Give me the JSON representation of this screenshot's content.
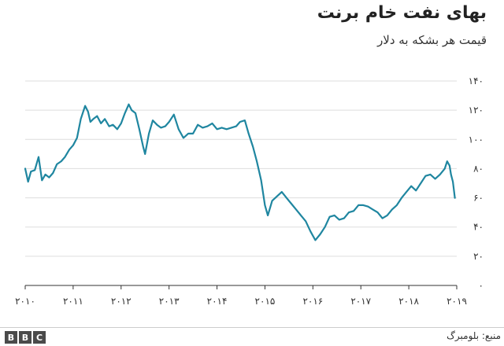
{
  "chart_data": {
    "type": "line",
    "title": "بهای نفت خام برنت",
    "subtitle": "قیمت هر بشکه به دلار",
    "xlabel": "",
    "ylabel": "",
    "ylim": [
      0,
      140
    ],
    "xlim": [
      2010,
      2019
    ],
    "y_ticks": [
      0,
      20,
      40,
      60,
      80,
      100,
      120,
      140
    ],
    "y_tick_labels": [
      "۰",
      "۲۰",
      "۴۰",
      "۶۰",
      "۸۰",
      "۱۰۰",
      "۱۲۰",
      "۱۴۰"
    ],
    "x_ticks": [
      2010,
      2011,
      2012,
      2013,
      2014,
      2015,
      2016,
      2017,
      2018,
      2019
    ],
    "x_tick_labels": [
      "۲۰۱۰",
      "۲۰۱۱",
      "۲۰۱۲",
      "۲۰۱۳",
      "۲۰۱۴",
      "۲۰۱۵",
      "۲۰۱۶",
      "۲۰۱۷",
      "۲۰۱۸",
      "۲۰۱۹"
    ],
    "grid": true,
    "line_color": "#1f86a0",
    "series": [
      {
        "x": [
          2010.0,
          2010.06,
          2010.12,
          2010.2,
          2010.28,
          2010.35,
          2010.42,
          2010.5,
          2010.58,
          2010.66,
          2010.75,
          2010.83,
          2010.92,
          2011.0,
          2011.08,
          2011.16,
          2011.25,
          2011.31,
          2011.36,
          2011.42,
          2011.5,
          2011.58,
          2011.66,
          2011.75,
          2011.83,
          2011.92,
          2012.0,
          2012.08,
          2012.16,
          2012.22,
          2012.3,
          2012.38,
          2012.46,
          2012.5,
          2012.58,
          2012.66,
          2012.75,
          2012.83,
          2012.92,
          2013.0,
          2013.1,
          2013.2,
          2013.3,
          2013.4,
          2013.5,
          2013.6,
          2013.7,
          2013.8,
          2013.9,
          2014.0,
          2014.1,
          2014.2,
          2014.3,
          2014.4,
          2014.48,
          2014.58,
          2014.66,
          2014.75,
          2014.83,
          2014.92,
          2015.0,
          2015.06,
          2015.15,
          2015.25,
          2015.35,
          2015.45,
          2015.55,
          2015.65,
          2015.75,
          2015.85,
          2015.95,
          2016.05,
          2016.15,
          2016.25,
          2016.35,
          2016.45,
          2016.55,
          2016.65,
          2016.75,
          2016.85,
          2016.95,
          2017.05,
          2017.15,
          2017.25,
          2017.35,
          2017.45,
          2017.55,
          2017.65,
          2017.75,
          2017.85,
          2017.95,
          2018.05,
          2018.15,
          2018.25,
          2018.35,
          2018.45,
          2018.55,
          2018.65,
          2018.75,
          2018.8,
          2018.85,
          2018.88,
          2018.92,
          2018.96
        ],
        "y": [
          80,
          71,
          78,
          79,
          88,
          72,
          76,
          74,
          77,
          83,
          85,
          88,
          93,
          96,
          101,
          114,
          123,
          119,
          112,
          114,
          116,
          111,
          114,
          109,
          110,
          107,
          111,
          118,
          124,
          120,
          118,
          107,
          95,
          90,
          104,
          113,
          110,
          108,
          109,
          112,
          117,
          107,
          101,
          104,
          104,
          110,
          108,
          109,
          111,
          107,
          108,
          107,
          108,
          109,
          112,
          113,
          104,
          95,
          85,
          72,
          55,
          48,
          58,
          61,
          64,
          60,
          56,
          52,
          48,
          44,
          37,
          31,
          35,
          40,
          47,
          48,
          45,
          46,
          50,
          51,
          55,
          55,
          54,
          52,
          50,
          46,
          48,
          52,
          55,
          60,
          64,
          68,
          65,
          70,
          75,
          76,
          73,
          76,
          80,
          85,
          82,
          76,
          71,
          60
        ]
      }
    ],
    "source": "منبع: بلومبرگ",
    "logo_letters": [
      "B",
      "B",
      "C"
    ]
  }
}
